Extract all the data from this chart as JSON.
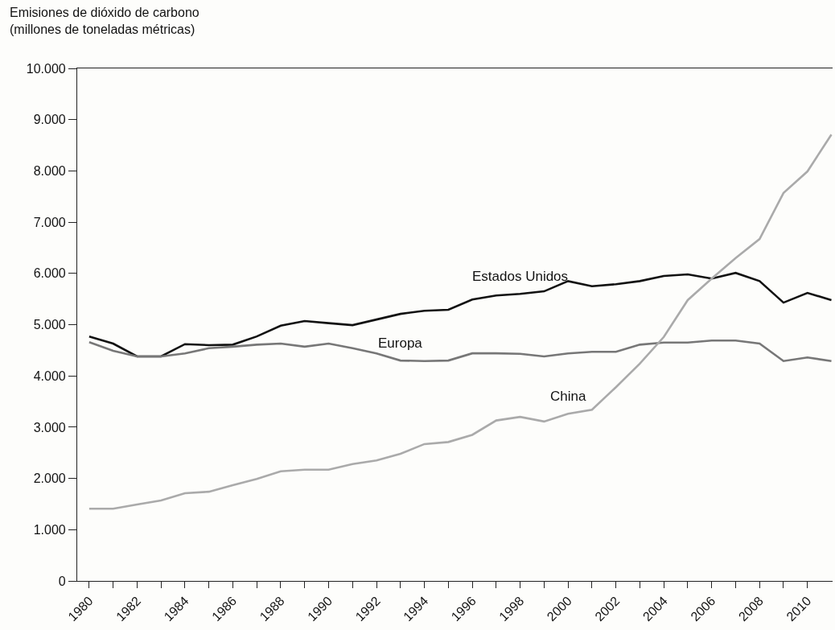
{
  "chart_data": {
    "type": "line",
    "ylabel": "Emisiones de dióxido de carbono\n(millones de toneladas métricas)",
    "x": [
      1980,
      1981,
      1982,
      1983,
      1984,
      1985,
      1986,
      1987,
      1988,
      1989,
      1990,
      1991,
      1992,
      1993,
      1994,
      1995,
      1996,
      1997,
      1998,
      1999,
      2000,
      2001,
      2002,
      2003,
      2004,
      2005,
      2006,
      2007,
      2008,
      2009,
      2010,
      2011
    ],
    "series": [
      {
        "color": "#111111",
        "values": [
          4770,
          4630,
          4380,
          4380,
          4620,
          4600,
          4610,
          4770,
          4980,
          5070,
          5030,
          4990,
          5100,
          5210,
          5270,
          5290,
          5490,
          5570,
          5600,
          5650,
          5850,
          5750,
          5790,
          5850,
          5950,
          5980,
          5900,
          6010,
          5850,
          5430,
          5620,
          5480
        ]
      },
      {
        "color": "#777777",
        "values": [
          4660,
          4490,
          4380,
          4380,
          4440,
          4540,
          4570,
          4610,
          4630,
          4570,
          4630,
          4540,
          4440,
          4300,
          4290,
          4300,
          4440,
          4440,
          4430,
          4380,
          4440,
          4470,
          4470,
          4610,
          4650,
          4650,
          4690,
          4690,
          4630,
          4290,
          4360,
          4290
        ]
      },
      {
        "color": "#aaaaaa",
        "values": [
          1410,
          1410,
          1490,
          1570,
          1710,
          1740,
          1870,
          1990,
          2140,
          2170,
          2170,
          2280,
          2350,
          2480,
          2670,
          2710,
          2850,
          3130,
          3200,
          3110,
          3260,
          3340,
          3780,
          4240,
          4760,
          5480,
          5900,
          6300,
          6670,
          7570,
          7990,
          8710
        ]
      }
    ],
    "annotations": [
      {
        "text": "Estados Unidos",
        "x": 1998,
        "y": 5600
      },
      {
        "text": "Europa",
        "x": 1993,
        "y": 4300
      },
      {
        "text": "China",
        "x": 2000,
        "y": 3260
      }
    ],
    "xlim": [
      1979.5,
      2011.05
    ],
    "xticks": [
      {
        "value": 1980,
        "label": "1980"
      },
      {
        "value": 1981,
        "label": null
      },
      {
        "value": 1982,
        "label": "1982"
      },
      {
        "value": 1983,
        "label": null
      },
      {
        "value": 1984,
        "label": "1984"
      },
      {
        "value": 1985,
        "label": null
      },
      {
        "value": 1986,
        "label": "1986"
      },
      {
        "value": 1987,
        "label": null
      },
      {
        "value": 1988,
        "label": "1988"
      },
      {
        "value": 1989,
        "label": null
      },
      {
        "value": 1990,
        "label": "1990"
      },
      {
        "value": 1991,
        "label": null
      },
      {
        "value": 1992,
        "label": "1992"
      },
      {
        "value": 1993,
        "label": null
      },
      {
        "value": 1994,
        "label": "1994"
      },
      {
        "value": 1995,
        "label": null
      },
      {
        "value": 1996,
        "label": "1996"
      },
      {
        "value": 1997,
        "label": null
      },
      {
        "value": 1998,
        "label": "1998"
      },
      {
        "value": 1999,
        "label": null
      },
      {
        "value": 2000,
        "label": "2000"
      },
      {
        "value": 2001,
        "label": null
      },
      {
        "value": 2002,
        "label": "2002"
      },
      {
        "value": 2003,
        "label": null
      },
      {
        "value": 2004,
        "label": "2004"
      },
      {
        "value": 2005,
        "label": null
      },
      {
        "value": 2006,
        "label": "2006"
      },
      {
        "value": 2007,
        "label": null
      },
      {
        "value": 2008,
        "label": "2008"
      },
      {
        "value": 2009,
        "label": null
      },
      {
        "value": 2010,
        "label": "2010"
      }
    ],
    "ylim": [
      0,
      10000
    ],
    "yticks": [
      0,
      {
        "value": 1000,
        "label": "1.000"
      },
      {
        "value": 2000,
        "label": "2.000"
      },
      {
        "value": 3000,
        "label": "3.000"
      },
      {
        "value": 4000,
        "label": "4.000"
      },
      {
        "value": 5000,
        "label": "5.000"
      },
      {
        "value": 6000,
        "label": "6.000"
      },
      {
        "value": 7000,
        "label": "7.000"
      },
      {
        "value": 8000,
        "label": "8.000"
      },
      {
        "value": 9000,
        "label": "9.000"
      },
      {
        "value": 10000,
        "label": "10.000"
      }
    ],
    "marker": "none",
    "line_style": "solid"
  }
}
